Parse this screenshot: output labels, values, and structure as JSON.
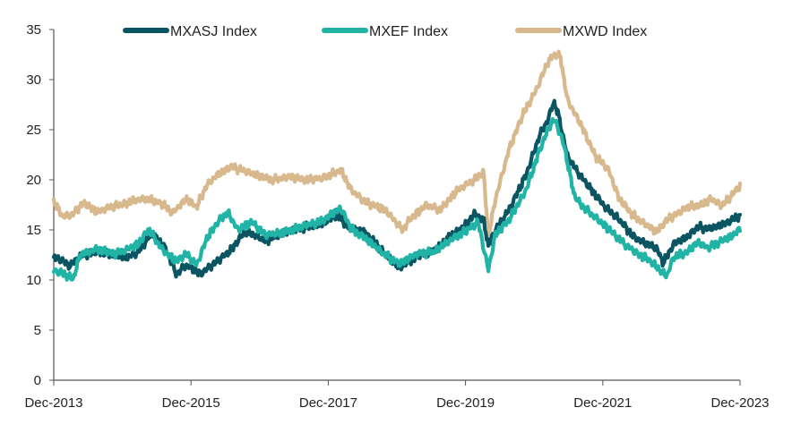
{
  "chart_data": {
    "type": "line",
    "title": "",
    "xlabel": "",
    "ylabel": "",
    "ylim": [
      0,
      35
    ],
    "y_ticks": [
      "0",
      "5",
      "10",
      "15",
      "20",
      "25",
      "30",
      "35"
    ],
    "x_ticks": [
      "Dec-2013",
      "Dec-2015",
      "Dec-2017",
      "Dec-2019",
      "Dec-2021",
      "Dec-2023"
    ],
    "x_start_year": 2013.917,
    "x_end_year": 2023.917,
    "legend_position": "top",
    "grid": false,
    "series": [
      {
        "name": "MXASJ Index",
        "color": "#0b5563",
        "anchors": [
          [
            2013.92,
            12.3
          ],
          [
            2014.05,
            11.9
          ],
          [
            2014.15,
            11.4
          ],
          [
            2014.3,
            12.4
          ],
          [
            2014.55,
            12.8
          ],
          [
            2014.8,
            12.5
          ],
          [
            2015.0,
            12.3
          ],
          [
            2015.15,
            12.8
          ],
          [
            2015.35,
            14.7
          ],
          [
            2015.55,
            13.1
          ],
          [
            2015.7,
            10.6
          ],
          [
            2015.85,
            11.5
          ],
          [
            2016.05,
            10.6
          ],
          [
            2016.25,
            11.6
          ],
          [
            2016.5,
            13.0
          ],
          [
            2016.7,
            14.8
          ],
          [
            2016.85,
            14.5
          ],
          [
            2017.0,
            13.9
          ],
          [
            2017.3,
            14.8
          ],
          [
            2017.6,
            15.3
          ],
          [
            2017.8,
            15.5
          ],
          [
            2018.05,
            16.5
          ],
          [
            2018.2,
            15.3
          ],
          [
            2018.45,
            14.8
          ],
          [
            2018.75,
            12.6
          ],
          [
            2018.95,
            11.2
          ],
          [
            2019.2,
            12.3
          ],
          [
            2019.45,
            12.9
          ],
          [
            2019.7,
            14.4
          ],
          [
            2019.9,
            15.4
          ],
          [
            2020.05,
            16.6
          ],
          [
            2020.18,
            16.0
          ],
          [
            2020.25,
            13.4
          ],
          [
            2020.35,
            15.0
          ],
          [
            2020.55,
            17.0
          ],
          [
            2020.8,
            20.5
          ],
          [
            2021.0,
            24.5
          ],
          [
            2021.12,
            26.0
          ],
          [
            2021.2,
            27.8
          ],
          [
            2021.27,
            26.5
          ],
          [
            2021.4,
            22.4
          ],
          [
            2021.55,
            20.8
          ],
          [
            2021.75,
            19.0
          ],
          [
            2021.95,
            17.3
          ],
          [
            2022.15,
            16.1
          ],
          [
            2022.35,
            14.4
          ],
          [
            2022.5,
            13.8
          ],
          [
            2022.7,
            13.2
          ],
          [
            2022.8,
            11.7
          ],
          [
            2022.95,
            13.6
          ],
          [
            2023.15,
            14.3
          ],
          [
            2023.3,
            15.3
          ],
          [
            2023.45,
            15.1
          ],
          [
            2023.6,
            15.4
          ],
          [
            2023.75,
            15.8
          ],
          [
            2023.92,
            16.5
          ]
        ]
      },
      {
        "name": "MXEF Index",
        "color": "#21b3a5",
        "anchors": [
          [
            2013.92,
            11.0
          ],
          [
            2014.1,
            10.5
          ],
          [
            2014.2,
            10.1
          ],
          [
            2014.3,
            12.5
          ],
          [
            2014.55,
            13.1
          ],
          [
            2014.8,
            12.6
          ],
          [
            2015.0,
            13.1
          ],
          [
            2015.15,
            13.6
          ],
          [
            2015.3,
            15.1
          ],
          [
            2015.5,
            13.0
          ],
          [
            2015.7,
            11.9
          ],
          [
            2015.85,
            12.6
          ],
          [
            2016.0,
            11.5
          ],
          [
            2016.15,
            14.2
          ],
          [
            2016.3,
            15.7
          ],
          [
            2016.45,
            16.8
          ],
          [
            2016.6,
            15.0
          ],
          [
            2016.8,
            15.8
          ],
          [
            2017.0,
            14.5
          ],
          [
            2017.3,
            14.8
          ],
          [
            2017.6,
            15.5
          ],
          [
            2017.8,
            15.8
          ],
          [
            2018.1,
            17.2
          ],
          [
            2018.25,
            15.1
          ],
          [
            2018.45,
            14.2
          ],
          [
            2018.75,
            12.5
          ],
          [
            2018.95,
            11.6
          ],
          [
            2019.2,
            12.6
          ],
          [
            2019.45,
            12.8
          ],
          [
            2019.7,
            14.0
          ],
          [
            2019.9,
            14.8
          ],
          [
            2020.1,
            15.8
          ],
          [
            2020.25,
            11.0
          ],
          [
            2020.35,
            14.5
          ],
          [
            2020.55,
            16.0
          ],
          [
            2020.8,
            19.0
          ],
          [
            2021.0,
            23.0
          ],
          [
            2021.15,
            25.5
          ],
          [
            2021.22,
            26.0
          ],
          [
            2021.35,
            23.5
          ],
          [
            2021.5,
            18.5
          ],
          [
            2021.6,
            17.5
          ],
          [
            2021.8,
            16.3
          ],
          [
            2022.05,
            14.8
          ],
          [
            2022.25,
            13.5
          ],
          [
            2022.45,
            12.5
          ],
          [
            2022.6,
            12.0
          ],
          [
            2022.75,
            11.0
          ],
          [
            2022.85,
            10.4
          ],
          [
            2022.95,
            12.3
          ],
          [
            2023.15,
            12.8
          ],
          [
            2023.3,
            13.8
          ],
          [
            2023.45,
            13.2
          ],
          [
            2023.65,
            13.9
          ],
          [
            2023.8,
            14.4
          ],
          [
            2023.92,
            15.1
          ]
        ]
      },
      {
        "name": "MXWD Index",
        "color": "#d8b98e",
        "anchors": [
          [
            2013.92,
            17.8
          ],
          [
            2014.05,
            16.3
          ],
          [
            2014.2,
            16.6
          ],
          [
            2014.35,
            17.7
          ],
          [
            2014.55,
            16.8
          ],
          [
            2014.75,
            17.3
          ],
          [
            2014.95,
            17.6
          ],
          [
            2015.1,
            18.0
          ],
          [
            2015.3,
            18.1
          ],
          [
            2015.5,
            17.6
          ],
          [
            2015.65,
            16.7
          ],
          [
            2015.85,
            18.1
          ],
          [
            2016.0,
            17.3
          ],
          [
            2016.15,
            19.5
          ],
          [
            2016.3,
            20.5
          ],
          [
            2016.5,
            21.3
          ],
          [
            2016.7,
            20.9
          ],
          [
            2016.9,
            20.4
          ],
          [
            2017.1,
            20.0
          ],
          [
            2017.35,
            20.3
          ],
          [
            2017.6,
            20.0
          ],
          [
            2017.85,
            20.2
          ],
          [
            2018.1,
            21.0
          ],
          [
            2018.25,
            19.0
          ],
          [
            2018.45,
            17.8
          ],
          [
            2018.75,
            17.0
          ],
          [
            2019.0,
            15.0
          ],
          [
            2019.1,
            16.0
          ],
          [
            2019.35,
            17.5
          ],
          [
            2019.55,
            17.0
          ],
          [
            2019.8,
            19.0
          ],
          [
            2020.05,
            20.0
          ],
          [
            2020.18,
            20.8
          ],
          [
            2020.25,
            14.3
          ],
          [
            2020.35,
            18.0
          ],
          [
            2020.55,
            23.0
          ],
          [
            2020.75,
            26.5
          ],
          [
            2020.95,
            29.0
          ],
          [
            2021.1,
            31.5
          ],
          [
            2021.2,
            32.5
          ],
          [
            2021.3,
            32.3
          ],
          [
            2021.4,
            28.0
          ],
          [
            2021.6,
            25.5
          ],
          [
            2021.8,
            22.5
          ],
          [
            2022.0,
            21.0
          ],
          [
            2022.15,
            18.2
          ],
          [
            2022.35,
            16.5
          ],
          [
            2022.55,
            15.5
          ],
          [
            2022.7,
            14.8
          ],
          [
            2022.85,
            16.0
          ],
          [
            2023.0,
            16.6
          ],
          [
            2023.15,
            17.3
          ],
          [
            2023.35,
            17.5
          ],
          [
            2023.5,
            18.1
          ],
          [
            2023.65,
            17.4
          ],
          [
            2023.8,
            18.5
          ],
          [
            2023.92,
            19.4
          ]
        ]
      }
    ]
  }
}
